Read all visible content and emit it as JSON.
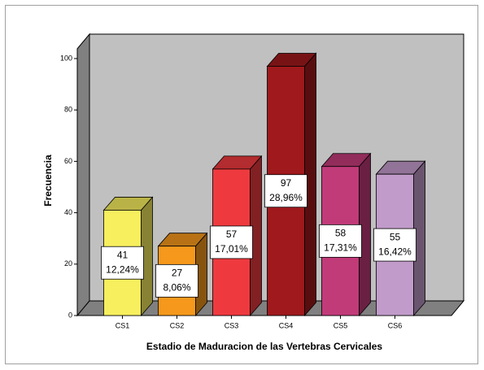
{
  "chart_data": {
    "type": "bar3d",
    "x_label": "Estadio de Maduracion de las Vertebras Cervicales",
    "y_label": "Frecuencia",
    "categories": [
      "CS1",
      "CS2",
      "CS3",
      "CS4",
      "CS5",
      "CS6"
    ],
    "values": [
      41,
      27,
      57,
      97,
      58,
      55
    ],
    "percentages": [
      12.24,
      8.06,
      17.01,
      28.96,
      17.31,
      16.42
    ],
    "percentage_labels": [
      "12,24%",
      "8,06%",
      "17,01%",
      "28,96%",
      "17,31%",
      "16,42%"
    ],
    "colors": [
      "#f7ef5e",
      "#f5981c",
      "#ee3a3f",
      "#a0191c",
      "#c13b79",
      "#c19bc9"
    ],
    "ylim": [
      0,
      100
    ],
    "yticks": [
      0,
      20,
      40,
      60,
      80,
      100
    ]
  }
}
